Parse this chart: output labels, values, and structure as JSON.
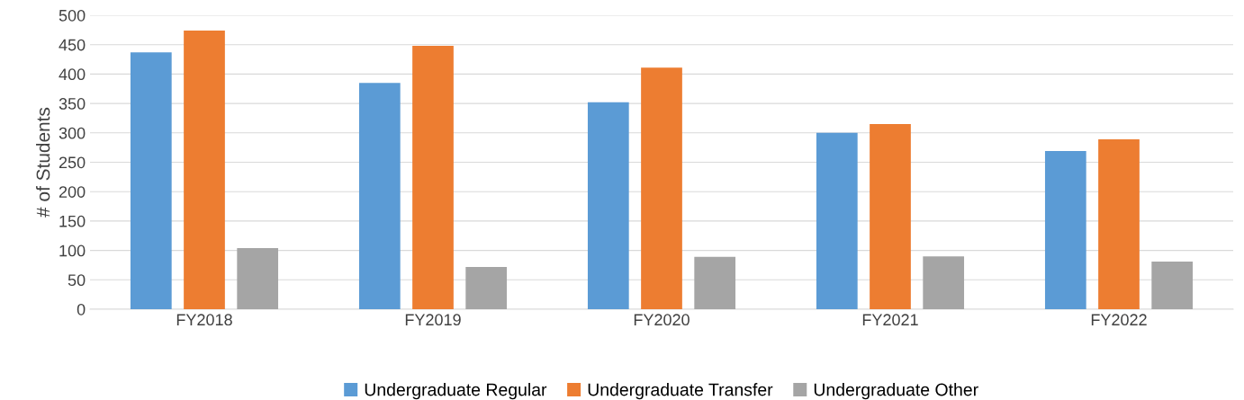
{
  "chart_data": {
    "type": "bar",
    "ylabel": "# of Students",
    "categories": [
      "FY2018",
      "FY2019",
      "FY2020",
      "FY2021",
      "FY2022"
    ],
    "series": [
      {
        "name": "Undergraduate Regular",
        "color": "#5b9bd5",
        "values": [
          437,
          385,
          352,
          300,
          269
        ]
      },
      {
        "name": "Undergraduate Transfer",
        "color": "#ed7d31",
        "values": [
          474,
          448,
          411,
          315,
          289
        ]
      },
      {
        "name": "Undergraduate Other",
        "color": "#a5a5a5",
        "values": [
          104,
          72,
          89,
          90,
          81
        ]
      }
    ],
    "ylim": [
      0,
      500
    ],
    "yticks": [
      0,
      50,
      100,
      150,
      200,
      250,
      300,
      350,
      400,
      450,
      500
    ],
    "grid": "y",
    "legend": "bottom"
  }
}
